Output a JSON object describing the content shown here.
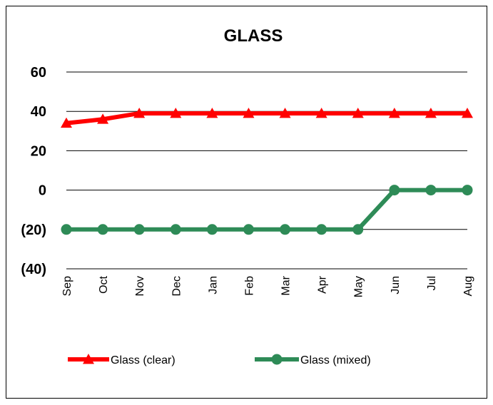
{
  "chart_data": {
    "type": "line",
    "title": "GLASS",
    "xlabel": "",
    "ylabel": "",
    "categories": [
      "Sep",
      "Oct",
      "Nov",
      "Dec",
      "Jan",
      "Feb",
      "Mar",
      "Apr",
      "May",
      "Jun",
      "Jul",
      "Aug"
    ],
    "ylim": [
      -40,
      60
    ],
    "yticks": [
      60,
      40,
      20,
      0,
      -20,
      -40
    ],
    "ytick_labels": [
      "60",
      "40",
      "20",
      "0",
      "(20)",
      "(40)"
    ],
    "grid": "horizontal",
    "legend_position": "bottom",
    "series": [
      {
        "name": "Glass (clear)",
        "color": "#ff0000",
        "marker": "triangle",
        "values": [
          34,
          36,
          39,
          39,
          39,
          39,
          39,
          39,
          39,
          39,
          39,
          39
        ]
      },
      {
        "name": "Glass (mixed)",
        "color": "#2e8b57",
        "marker": "circle",
        "values": [
          -20,
          -20,
          -20,
          -20,
          -20,
          -20,
          -20,
          -20,
          -20,
          0,
          0,
          0
        ]
      }
    ]
  }
}
